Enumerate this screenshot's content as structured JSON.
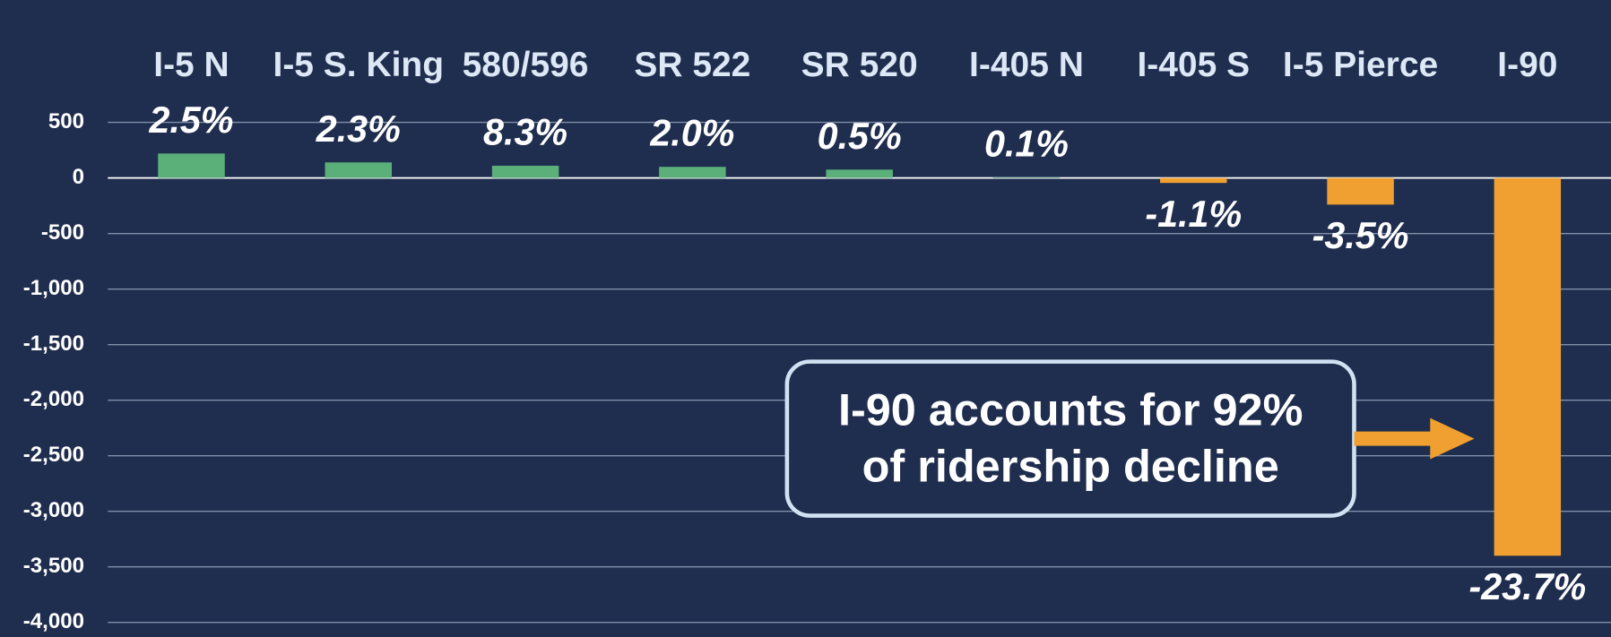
{
  "chart_data": {
    "type": "bar",
    "categories": [
      "I-5 N",
      "I-5 S. King",
      "580/596",
      "SR 522",
      "SR 520",
      "I-405 N",
      "I-405 S",
      "I-5 Pierce",
      "I-90"
    ],
    "values": [
      220,
      140,
      110,
      100,
      75,
      5,
      -45,
      -240,
      -3400
    ],
    "percent_values": [
      2.5,
      2.3,
      8.3,
      2.0,
      0.5,
      0.1,
      -1.1,
      -3.5,
      -23.7
    ],
    "percent_labels": [
      "2.5%",
      "2.3%",
      "8.3%",
      "2.0%",
      "0.5%",
      "0.1%",
      "-1.1%",
      "-3.5%",
      "-23.7%"
    ],
    "positive_color": "#5bb07a",
    "negative_color": "#f0a030",
    "ylim": [
      -4000,
      500
    ],
    "yticks": [
      500,
      0,
      -500,
      {
        "value": -1000,
        "label": "-1,000"
      },
      {
        "value": -1500,
        "label": "-1,500"
      },
      {
        "value": -2000,
        "label": "-2,000"
      },
      {
        "value": -2500,
        "label": "-2,500"
      },
      {
        "value": -3000,
        "label": "-3,000"
      },
      {
        "value": -3500,
        "label": "-3,500"
      },
      {
        "value": -4000,
        "label": "-4,000"
      }
    ],
    "grid": true,
    "annotation": "I-90 accounts for 92% of ridership decline"
  }
}
